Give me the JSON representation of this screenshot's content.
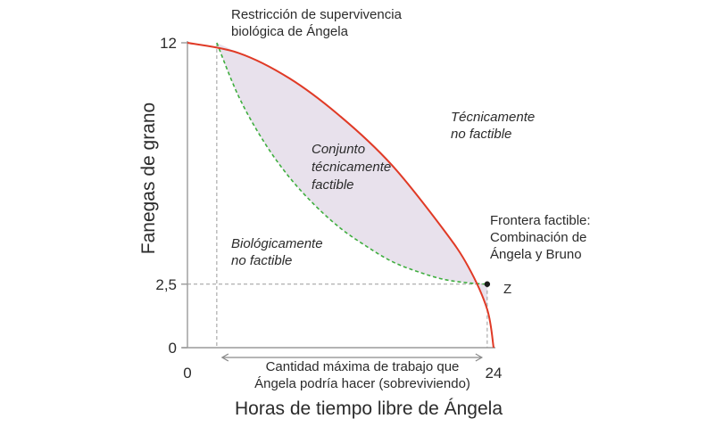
{
  "chart_data": {
    "type": "area",
    "xlabel": "Horas de tiempo libre de Ángela",
    "ylabel": "Fanegas de grano",
    "xlim": [
      0,
      24
    ],
    "ylim": [
      0,
      12
    ],
    "x_ticks": [
      "0",
      "24"
    ],
    "y_ticks": [
      "0",
      "2,5",
      "12"
    ],
    "grid": false,
    "colors": {
      "frontier": "#e03a26",
      "survival": "#3fae3f",
      "feasible_fill": "#e8e1ec",
      "axis": "#9a9a9a",
      "dash": "#9a9a9a"
    },
    "series": [
      {
        "name": "Frontera factible: Combinación de Ángela y Bruno",
        "x": [
          0,
          4,
          8,
          12,
          16,
          20,
          22,
          23.5,
          24
        ],
        "y": [
          12,
          11.6,
          10.6,
          9.1,
          7.2,
          4.7,
          3.2,
          1.5,
          0
        ]
      },
      {
        "name": "Restricción de supervivencia biológica de Ángela",
        "x": [
          2.3,
          4,
          6,
          8,
          10,
          12,
          14,
          16,
          18,
          20,
          22,
          23.5
        ],
        "y": [
          12,
          9.9,
          8.1,
          6.7,
          5.6,
          4.7,
          4.0,
          3.4,
          3.0,
          2.7,
          2.55,
          2.5
        ]
      }
    ],
    "points": [
      {
        "name": "Z",
        "x": 23.5,
        "y": 2.5
      }
    ],
    "annotations": {
      "survival_title": [
        "Restricción de supervivencia",
        "biológica de Ángela"
      ],
      "feasible_set": [
        "Conjunto",
        "técnicamente",
        "factible"
      ],
      "tech_infeasible": [
        "Técnicamente",
        "no factible"
      ],
      "bio_infeasible": [
        "Biológicamente",
        "no factible"
      ],
      "frontier_label": [
        "Frontera factible:",
        "Combinación de",
        "Ángela y Bruno"
      ],
      "max_work": [
        "Cantidad máxima de trabajo que",
        "Ángela podría hacer (sobreviviendo)"
      ],
      "point_label": "Z"
    }
  }
}
